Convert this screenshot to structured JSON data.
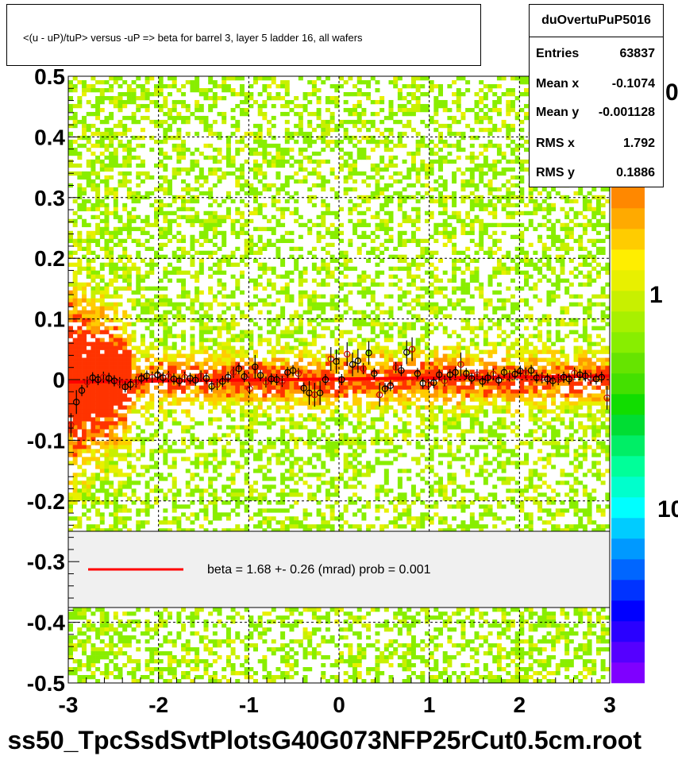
{
  "chart_data": {
    "type": "scatter",
    "title": "<(u - uP)/tuP> versus  -uP => beta for barrel 3, layer 5 ladder 16, all wafers",
    "histogram_name": "duOvertuPuP5016",
    "stats": [
      {
        "label": "Entries",
        "value": "63837"
      },
      {
        "label": "Mean x",
        "value": "-0.1074"
      },
      {
        "label": "Mean y",
        "value": "-0.001128"
      },
      {
        "label": "RMS x",
        "value": "1.792"
      },
      {
        "label": "RMS y",
        "value": "0.1886"
      }
    ],
    "xlim": [
      -3,
      3
    ],
    "ylim": [
      -0.5,
      0.5
    ],
    "x_ticks": [
      "-3",
      "-2",
      "-1",
      "0",
      "1",
      "2",
      "3"
    ],
    "y_ticks": [
      "0.5",
      "0.4",
      "0.3",
      "0.2",
      "0.1",
      "0",
      "-0.1",
      "-0.2",
      "-0.3",
      "-0.4",
      "-0.5"
    ],
    "grid": true,
    "z_labels": [
      "0",
      "1",
      "10"
    ],
    "legend": {
      "text": "beta =    1.68 +-  0.26 (mrad) prob = 0.001",
      "color": "#ff0000"
    },
    "fit_line": {
      "x": [
        -3,
        3
      ],
      "y": [
        -0.004,
        0.006
      ],
      "color": "#ff0000"
    },
    "profile_points": {
      "x": [
        -2.97,
        -2.91,
        -2.85,
        -2.79,
        -2.73,
        -2.67,
        -2.61,
        -2.55,
        -2.49,
        -2.43,
        -2.37,
        -2.31,
        -2.25,
        -2.19,
        -2.13,
        -2.07,
        -2.01,
        -1.95,
        -1.89,
        -1.83,
        -1.77,
        -1.71,
        -1.65,
        -1.59,
        -1.53,
        -1.47,
        -1.41,
        -1.35,
        -1.29,
        -1.23,
        -1.17,
        -1.11,
        -1.05,
        -0.99,
        -0.93,
        -0.87,
        -0.81,
        -0.75,
        -0.69,
        -0.63,
        -0.57,
        -0.51,
        -0.45,
        -0.39,
        -0.33,
        -0.27,
        -0.21,
        -0.15,
        -0.09,
        -0.03,
        0.03,
        0.09,
        0.15,
        0.21,
        0.27,
        0.33,
        0.39,
        0.45,
        0.51,
        0.57,
        0.63,
        0.69,
        0.75,
        0.81,
        0.87,
        0.93,
        0.99,
        1.05,
        1.11,
        1.17,
        1.23,
        1.29,
        1.35,
        1.41,
        1.47,
        1.53,
        1.59,
        1.65,
        1.71,
        1.77,
        1.83,
        1.89,
        1.95,
        2.01,
        2.07,
        2.13,
        2.19,
        2.25,
        2.31,
        2.37,
        2.43,
        2.49,
        2.55,
        2.61,
        2.67,
        2.73,
        2.79,
        2.85,
        2.91,
        2.97
      ],
      "y": [
        -0.075,
        -0.037,
        -0.018,
        -0.004,
        0.003,
        0.0,
        0.004,
        0.002,
        -0.002,
        -0.005,
        -0.012,
        -0.008,
        -0.004,
        0.002,
        0.006,
        0.004,
        0.008,
        0.003,
        0.005,
        0.001,
        -0.002,
        0.004,
        0.002,
        -0.001,
        0.006,
        0.002,
        -0.011,
        -0.008,
        -0.003,
        0.004,
        0.012,
        0.018,
        0.005,
        -0.015,
        0.021,
        0.007,
        -0.004,
        0.001,
        0.0,
        -0.003,
        0.012,
        0.015,
        0.01,
        -0.014,
        -0.022,
        -0.025,
        -0.022,
        0.0,
        0.034,
        0.03,
        0.0,
        0.042,
        0.025,
        0.031,
        0.018,
        0.044,
        0.01,
        -0.025,
        -0.015,
        -0.01,
        0.02,
        0.015,
        0.045,
        0.05,
        0.01,
        -0.006,
        -0.008,
        -0.005,
        0.008,
        -0.002,
        0.008,
        0.012,
        0.025,
        0.01,
        0.002,
        0.008,
        -0.003,
        0.003,
        0.009,
        -0.001,
        0.012,
        0.006,
        0.009,
        0.014,
        0.011,
        0.015,
        0.003,
        0.003,
        0.001,
        -0.002,
        0.0,
        0.004,
        0.001,
        0.011,
        0.008,
        0.006,
        0.002,
        0.001,
        0.004,
        -0.03
      ]
    },
    "colors": {
      "fit": "#ff0000",
      "background": "#ffffff",
      "legend_bg": "#f0f0f0"
    }
  }
}
